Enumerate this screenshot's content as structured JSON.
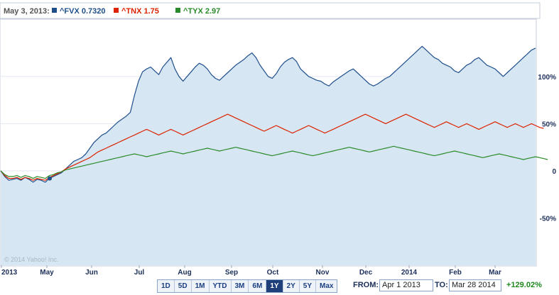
{
  "chart_data": {
    "type": "line",
    "x_labels": [
      "2013",
      "May",
      "Jun",
      "Jul",
      "Aug",
      "Sep",
      "Oct",
      "Nov",
      "Dec",
      "2014",
      "Feb",
      "Mar"
    ],
    "y_ticks": [
      "100%",
      "50%",
      "0",
      "-50%"
    ],
    "y_tick_values": [
      100,
      50,
      0,
      -50
    ],
    "ylim": [
      -100,
      160
    ],
    "legend_date": "May 3, 2013:",
    "legend": [
      {
        "symbol": "^FVX",
        "value": "0.7320",
        "color": "#1f4f8b"
      },
      {
        "symbol": "^TNX",
        "value": "1.75",
        "color": "#dd2200"
      },
      {
        "symbol": "^TYX",
        "value": "2.97",
        "color": "#2a8a2a"
      }
    ],
    "copyright": "© 2014 Yahoo! Inc.",
    "series": [
      {
        "name": "^FVX",
        "color": "#1f4f8b",
        "fill": true,
        "values": [
          0,
          -6,
          -10,
          -9,
          -8,
          -10,
          -7,
          -9,
          -12,
          -9,
          -10,
          -12,
          -8,
          -6,
          -4,
          -2,
          2,
          6,
          10,
          12,
          14,
          18,
          24,
          30,
          34,
          38,
          40,
          44,
          48,
          52,
          55,
          58,
          62,
          80,
          95,
          105,
          108,
          110,
          106,
          102,
          110,
          115,
          120,
          108,
          100,
          95,
          100,
          105,
          110,
          114,
          112,
          108,
          102,
          98,
          96,
          100,
          104,
          108,
          112,
          115,
          118,
          122,
          125,
          120,
          112,
          106,
          100,
          98,
          103,
          110,
          115,
          118,
          120,
          116,
          108,
          104,
          100,
          98,
          96,
          95,
          92,
          90,
          94,
          97,
          100,
          103,
          106,
          108,
          104,
          100,
          96,
          92,
          90,
          92,
          95,
          98,
          100,
          104,
          108,
          112,
          116,
          120,
          124,
          128,
          132,
          128,
          124,
          120,
          118,
          114,
          112,
          110,
          106,
          104,
          108,
          112,
          114,
          118,
          120,
          116,
          112,
          110,
          108,
          104,
          100,
          104,
          108,
          112,
          116,
          120,
          124,
          128,
          130
        ]
      },
      {
        "name": "^TNX",
        "color": "#dd2200",
        "fill": false,
        "values": [
          0,
          -5,
          -8,
          -8,
          -7,
          -9,
          -7,
          -8,
          -10,
          -8,
          -9,
          -10,
          -7,
          -5,
          -3,
          -1,
          2,
          4,
          6,
          8,
          10,
          12,
          14,
          17,
          20,
          22,
          24,
          26,
          28,
          30,
          32,
          34,
          36,
          38,
          40,
          42,
          44,
          42,
          40,
          38,
          40,
          42,
          44,
          42,
          40,
          38,
          40,
          42,
          44,
          46,
          48,
          50,
          52,
          54,
          56,
          58,
          60,
          58,
          56,
          54,
          52,
          50,
          48,
          46,
          44,
          42,
          44,
          46,
          48,
          46,
          44,
          42,
          40,
          42,
          44,
          46,
          48,
          46,
          44,
          42,
          40,
          42,
          44,
          46,
          48,
          50,
          52,
          54,
          56,
          58,
          60,
          58,
          56,
          54,
          52,
          50,
          52,
          54,
          56,
          58,
          60,
          58,
          56,
          54,
          52,
          50,
          48,
          46,
          48,
          50,
          52,
          50,
          48,
          46,
          48,
          50,
          48,
          46,
          44,
          46,
          48,
          50,
          52,
          50,
          48,
          46,
          48,
          50,
          48,
          46,
          48,
          50,
          48,
          46,
          45
        ]
      },
      {
        "name": "^TYX",
        "color": "#2a8a2a",
        "fill": false,
        "values": [
          0,
          -4,
          -6,
          -6,
          -5,
          -7,
          -5,
          -6,
          -8,
          -6,
          -7,
          -8,
          -5,
          -4,
          -2,
          -1,
          1,
          2,
          3,
          4,
          5,
          6,
          7,
          8,
          9,
          10,
          11,
          12,
          13,
          14,
          15,
          16,
          17,
          18,
          17,
          16,
          15,
          16,
          17,
          18,
          19,
          20,
          21,
          20,
          19,
          18,
          19,
          20,
          21,
          22,
          23,
          24,
          23,
          22,
          21,
          22,
          23,
          24,
          25,
          24,
          23,
          22,
          21,
          20,
          19,
          18,
          17,
          16,
          17,
          18,
          19,
          20,
          21,
          20,
          19,
          18,
          17,
          16,
          17,
          18,
          19,
          20,
          21,
          22,
          23,
          24,
          25,
          24,
          23,
          22,
          21,
          20,
          21,
          22,
          23,
          24,
          25,
          26,
          25,
          24,
          23,
          22,
          21,
          20,
          19,
          18,
          17,
          16,
          17,
          18,
          19,
          20,
          21,
          20,
          19,
          18,
          17,
          16,
          15,
          14,
          15,
          16,
          17,
          18,
          17,
          16,
          15,
          14,
          13,
          12,
          13,
          14,
          15,
          14,
          13,
          12
        ]
      }
    ]
  },
  "controls": {
    "ranges": [
      "1D",
      "5D",
      "1M",
      "YTD",
      "3M",
      "6M",
      "1Y",
      "2Y",
      "5Y",
      "Max"
    ],
    "active_range": "1Y",
    "from_label": "FROM:",
    "from_value": "Apr 1 2013",
    "to_label": "TO:",
    "to_value": "Mar 28 2014",
    "change_value": "+129.02%",
    "change_color": "#1e8a1e"
  }
}
